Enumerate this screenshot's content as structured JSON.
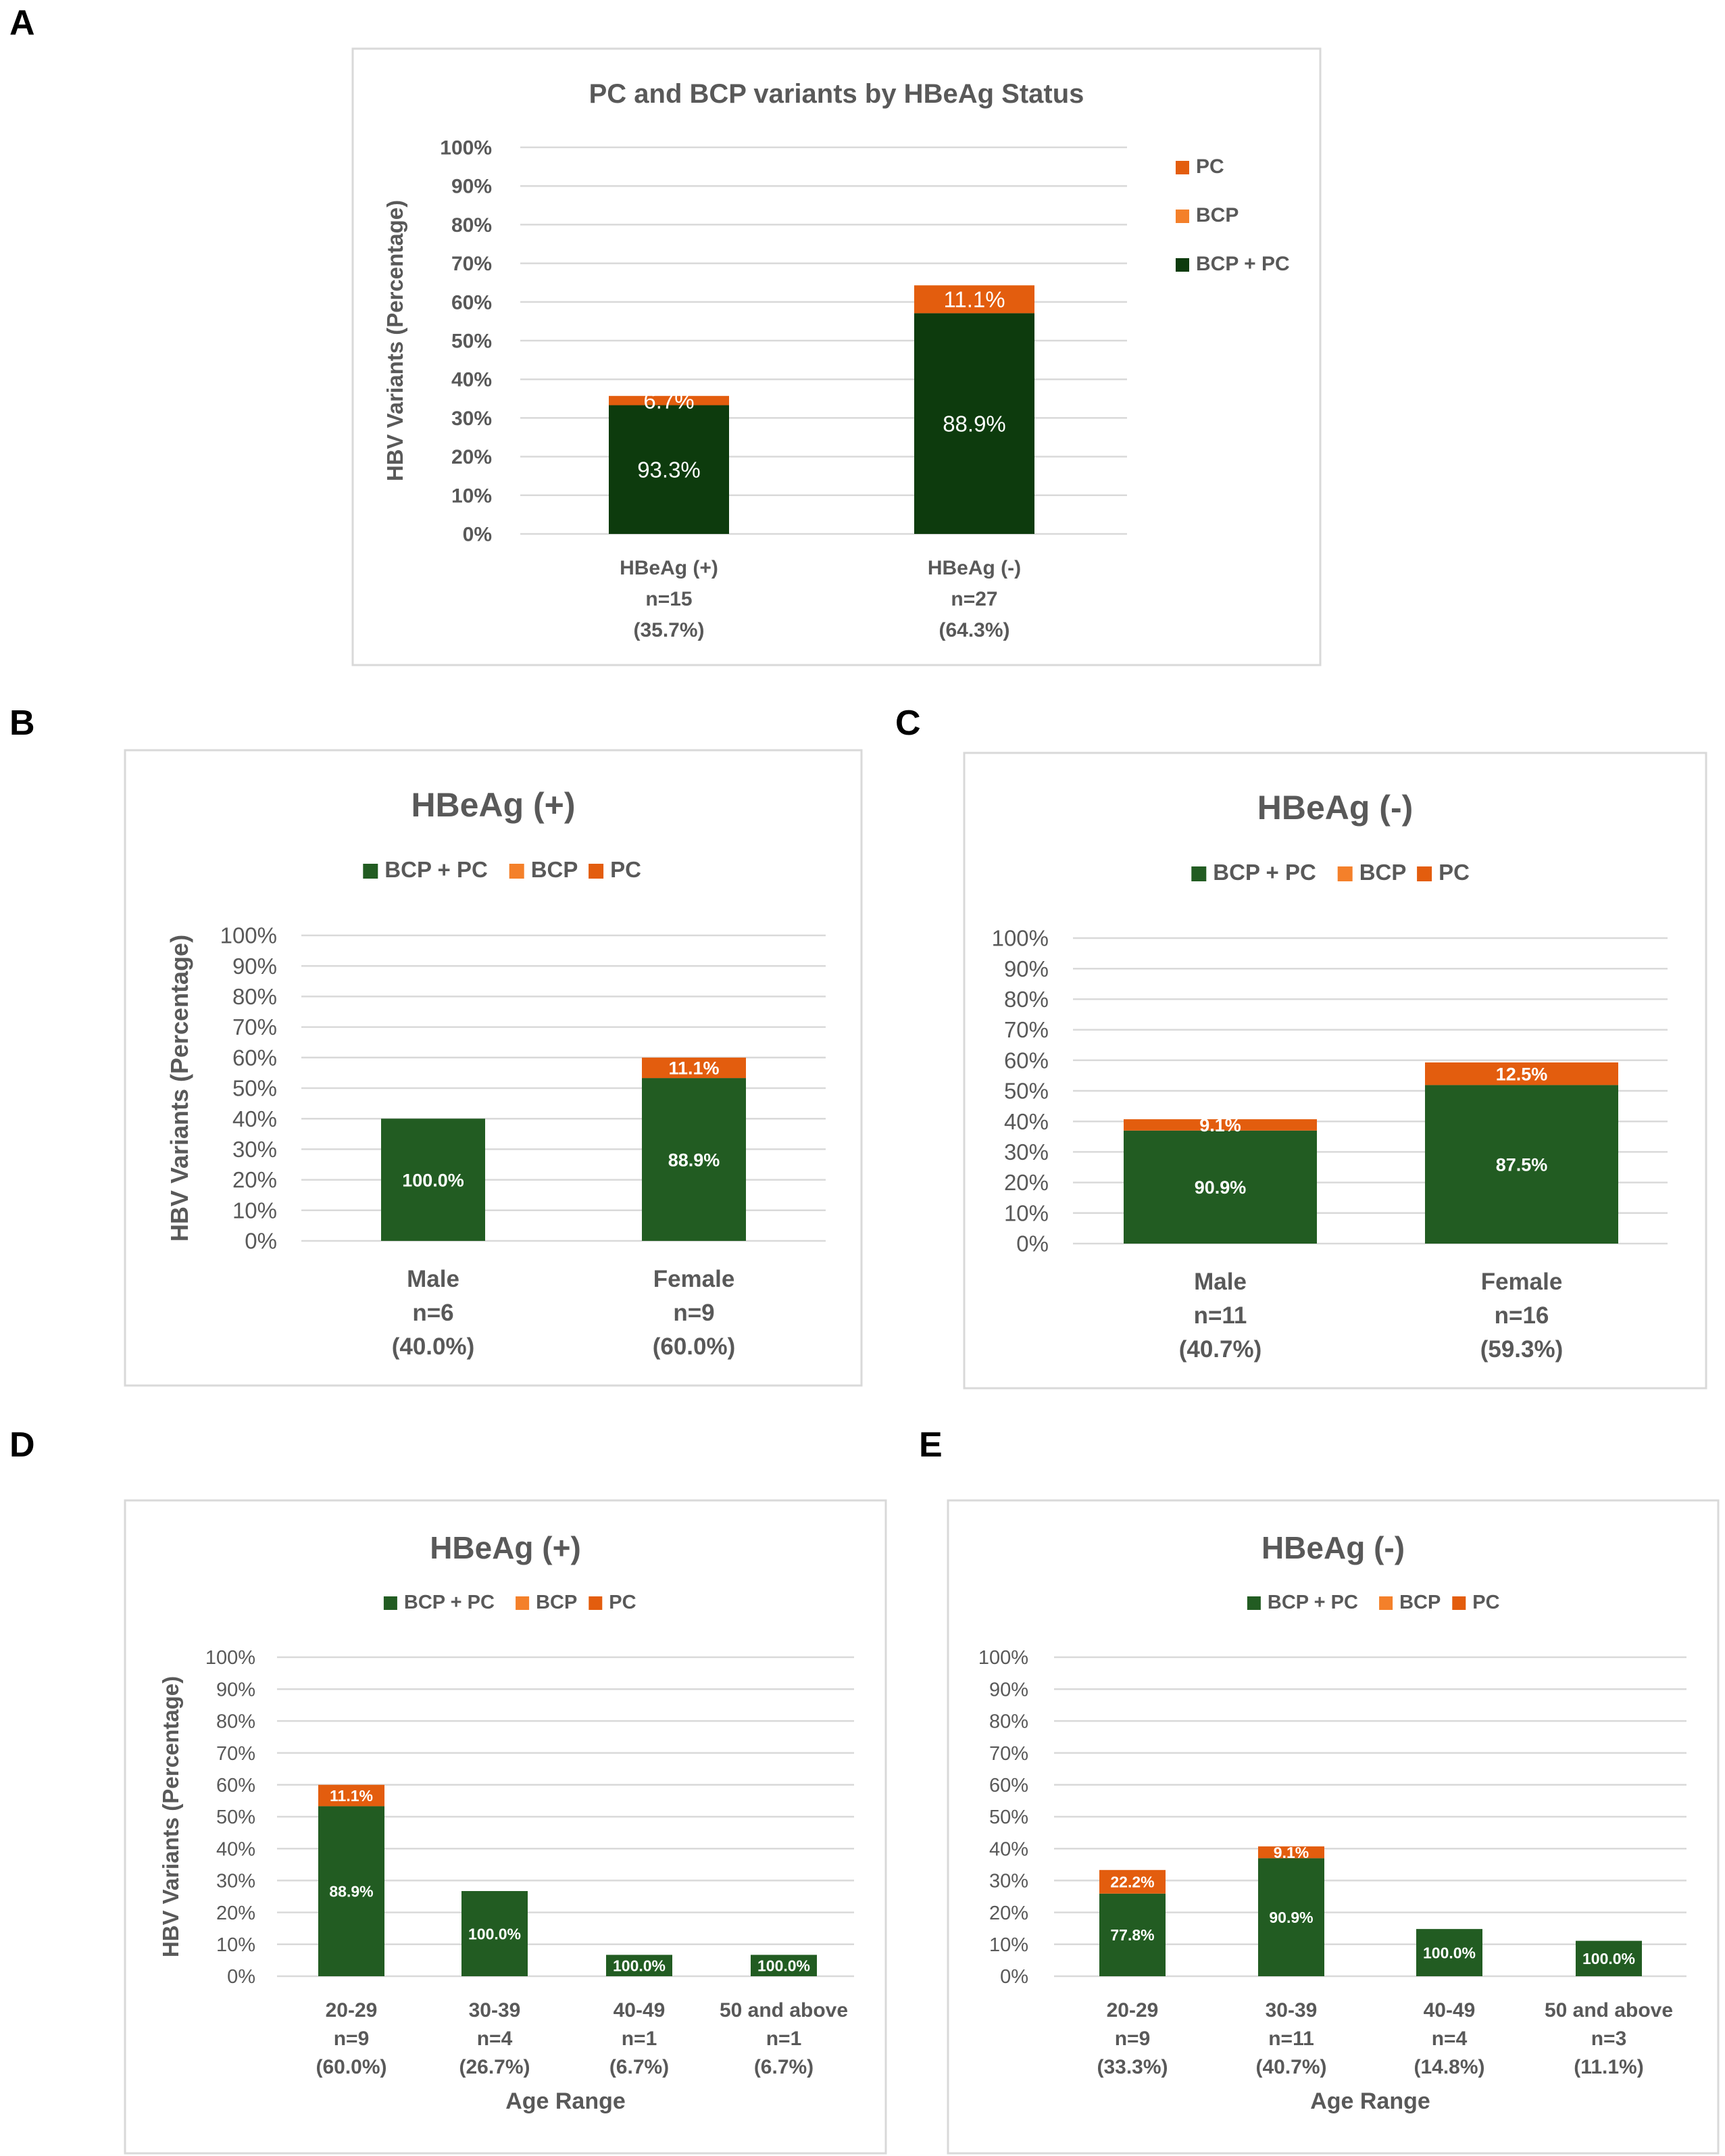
{
  "panels": [
    {
      "letter": "A",
      "chart_data": {
        "type": "bar",
        "stacked": true,
        "title": "PC and BCP variants by HBeAg Status",
        "ylabel": "HBV Variants (Percentage)",
        "xlabel": "",
        "ylim": [
          0,
          100
        ],
        "yticks": [
          "0%",
          "10%",
          "20%",
          "30%",
          "40%",
          "50%",
          "60%",
          "70%",
          "80%",
          "90%",
          "100%"
        ],
        "legend_position": "right",
        "legend_order": [
          "PC",
          "BCP",
          "BCP + PC"
        ],
        "categories": [
          [
            "HBeAg (+)",
            "n=15",
            "(35.7%)"
          ],
          [
            "HBeAg (-)",
            "n=27",
            "(64.3%)"
          ]
        ],
        "series": [
          {
            "name": "BCP + PC",
            "color": "#0d3b0d",
            "values": [
              33.3,
              57.1
            ],
            "labels": [
              "93.3%",
              "88.9%"
            ]
          },
          {
            "name": "BCP",
            "color": "#f4802a",
            "values": [
              0,
              0
            ],
            "labels": [
              "",
              ""
            ]
          },
          {
            "name": "PC",
            "color": "#e35d0e",
            "values": [
              2.4,
              7.2
            ],
            "labels": [
              "6.7%",
              "11.1%"
            ]
          }
        ]
      }
    },
    {
      "letter": "B",
      "chart_data": {
        "type": "bar",
        "stacked": true,
        "title": "HBeAg (+)",
        "ylabel": "HBV Variants (Percentage)",
        "xlabel": "",
        "ylim": [
          0,
          100
        ],
        "yticks": [
          "0%",
          "10%",
          "20%",
          "30%",
          "40%",
          "50%",
          "60%",
          "70%",
          "80%",
          "90%",
          "100%"
        ],
        "legend_position": "top",
        "legend_order": [
          "BCP + PC",
          "BCP",
          "PC"
        ],
        "categories": [
          [
            "Male",
            "n=6",
            "(40.0%)"
          ],
          [
            "Female",
            "n=9",
            "(60.0%)"
          ]
        ],
        "series": [
          {
            "name": "BCP + PC",
            "color": "#225c22",
            "values": [
              40.0,
              53.3
            ],
            "labels": [
              "100.0%",
              "88.9%"
            ]
          },
          {
            "name": "BCP",
            "color": "#f4802a",
            "values": [
              0,
              0
            ],
            "labels": [
              "",
              ""
            ]
          },
          {
            "name": "PC",
            "color": "#e35d0e",
            "values": [
              0,
              6.7
            ],
            "labels": [
              "",
              "11.1%"
            ]
          }
        ]
      }
    },
    {
      "letter": "C",
      "chart_data": {
        "type": "bar",
        "stacked": true,
        "title": "HBeAg (-)",
        "ylabel": "",
        "xlabel": "",
        "ylim": [
          0,
          100
        ],
        "yticks": [
          "0%",
          "10%",
          "20%",
          "30%",
          "40%",
          "50%",
          "60%",
          "70%",
          "80%",
          "90%",
          "100%"
        ],
        "legend_position": "top",
        "legend_order": [
          "BCP + PC",
          "BCP",
          "PC"
        ],
        "categories": [
          [
            "Male",
            "n=11",
            "(40.7%)"
          ],
          [
            "Female",
            "n=16",
            "(59.3%)"
          ]
        ],
        "series": [
          {
            "name": "BCP + PC",
            "color": "#225c22",
            "values": [
              37.0,
              51.9
            ],
            "labels": [
              "90.9%",
              "87.5%"
            ]
          },
          {
            "name": "BCP",
            "color": "#f4802a",
            "values": [
              0,
              0
            ],
            "labels": [
              "",
              ""
            ]
          },
          {
            "name": "PC",
            "color": "#e35d0e",
            "values": [
              3.7,
              7.4
            ],
            "labels": [
              "9.1%",
              "12.5%"
            ]
          }
        ]
      }
    },
    {
      "letter": "D",
      "chart_data": {
        "type": "bar",
        "stacked": true,
        "title": "HBeAg (+)",
        "ylabel": "HBV Variants (Percentage)",
        "xlabel": "Age Range",
        "ylim": [
          0,
          100
        ],
        "yticks": [
          "0%",
          "10%",
          "20%",
          "30%",
          "40%",
          "50%",
          "60%",
          "70%",
          "80%",
          "90%",
          "100%"
        ],
        "legend_position": "top",
        "legend_order": [
          "BCP + PC",
          "BCP",
          "PC"
        ],
        "categories": [
          [
            "20-29",
            "n=9",
            "(60.0%)"
          ],
          [
            "30-39",
            "n=4",
            "(26.7%)"
          ],
          [
            "40-49",
            "n=1",
            "(6.7%)"
          ],
          [
            "50 and above",
            "n=1",
            "(6.7%)"
          ]
        ],
        "series": [
          {
            "name": "BCP + PC",
            "color": "#225c22",
            "values": [
              53.3,
              26.7,
              6.7,
              6.7
            ],
            "labels": [
              "88.9%",
              "100.0%",
              "100.0%",
              "100.0%"
            ]
          },
          {
            "name": "BCP",
            "color": "#f4802a",
            "values": [
              0,
              0,
              0,
              0
            ],
            "labels": [
              "",
              "",
              "",
              ""
            ]
          },
          {
            "name": "PC",
            "color": "#e35d0e",
            "values": [
              6.7,
              0,
              0,
              0
            ],
            "labels": [
              "11.1%",
              "",
              "",
              ""
            ]
          }
        ]
      }
    },
    {
      "letter": "E",
      "chart_data": {
        "type": "bar",
        "stacked": true,
        "title": "HBeAg (-)",
        "ylabel": "",
        "xlabel": "Age Range",
        "ylim": [
          0,
          100
        ],
        "yticks": [
          "0%",
          "10%",
          "20%",
          "30%",
          "40%",
          "50%",
          "60%",
          "70%",
          "80%",
          "90%",
          "100%"
        ],
        "legend_position": "top",
        "legend_order": [
          "BCP + PC",
          "BCP",
          "PC"
        ],
        "categories": [
          [
            "20-29",
            "n=9",
            "(33.3%)"
          ],
          [
            "30-39",
            "n=11",
            "(40.7%)"
          ],
          [
            "40-49",
            "n=4",
            "(14.8%)"
          ],
          [
            "50 and above",
            "n=3",
            "(11.1%)"
          ]
        ],
        "series": [
          {
            "name": "BCP + PC",
            "color": "#225c22",
            "values": [
              25.9,
              37.0,
              14.8,
              11.1
            ],
            "labels": [
              "77.8%",
              "90.9%",
              "100.0%",
              "100.0%"
            ]
          },
          {
            "name": "BCP",
            "color": "#f4802a",
            "values": [
              0,
              0,
              0,
              0
            ],
            "labels": [
              "",
              "",
              "",
              ""
            ]
          },
          {
            "name": "PC",
            "color": "#e35d0e",
            "values": [
              7.4,
              3.7,
              0,
              0
            ],
            "labels": [
              "22.2%",
              "9.1%",
              "",
              ""
            ]
          }
        ]
      }
    }
  ]
}
